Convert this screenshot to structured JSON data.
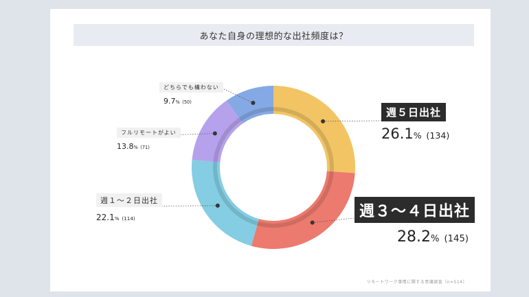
{
  "chart_data": {
    "type": "pie",
    "title": "あなた自身の理想的な出社頻度は？",
    "unit": "%",
    "categories": [
      "週５日出社",
      "週３〜４日出社",
      "週１〜２日出社",
      "フルリモートがよい",
      "どちらでも構わない"
    ],
    "values": [
      26.1,
      28.2,
      22.1,
      13.8,
      9.7
    ],
    "counts": [
      "(134)",
      "(145)",
      "(114)",
      "(71)",
      "(50)"
    ],
    "colors": [
      "#f2c463",
      "#ec7a6e",
      "#84cde3",
      "#b6a1ec",
      "#84a9e4"
    ]
  },
  "labels": [
    {
      "cat": "週５日出社",
      "value": "26.1",
      "unit": "%",
      "count": "(134)"
    },
    {
      "cat": "週３〜４日出社",
      "value": "28.2",
      "unit": "%",
      "count": "(145)"
    },
    {
      "cat": "週１〜２日出社",
      "value": "22.1",
      "unit": "%",
      "count": "(114)"
    },
    {
      "cat": "フルリモートがよい",
      "value": "13.8",
      "unit": "%",
      "count": "(71)"
    },
    {
      "cat": "どちらでも構わない",
      "value": "9.7",
      "unit": "%",
      "count": "(50)"
    }
  ],
  "footer": "リモートワーク事情に関する意識調査（n=514）"
}
